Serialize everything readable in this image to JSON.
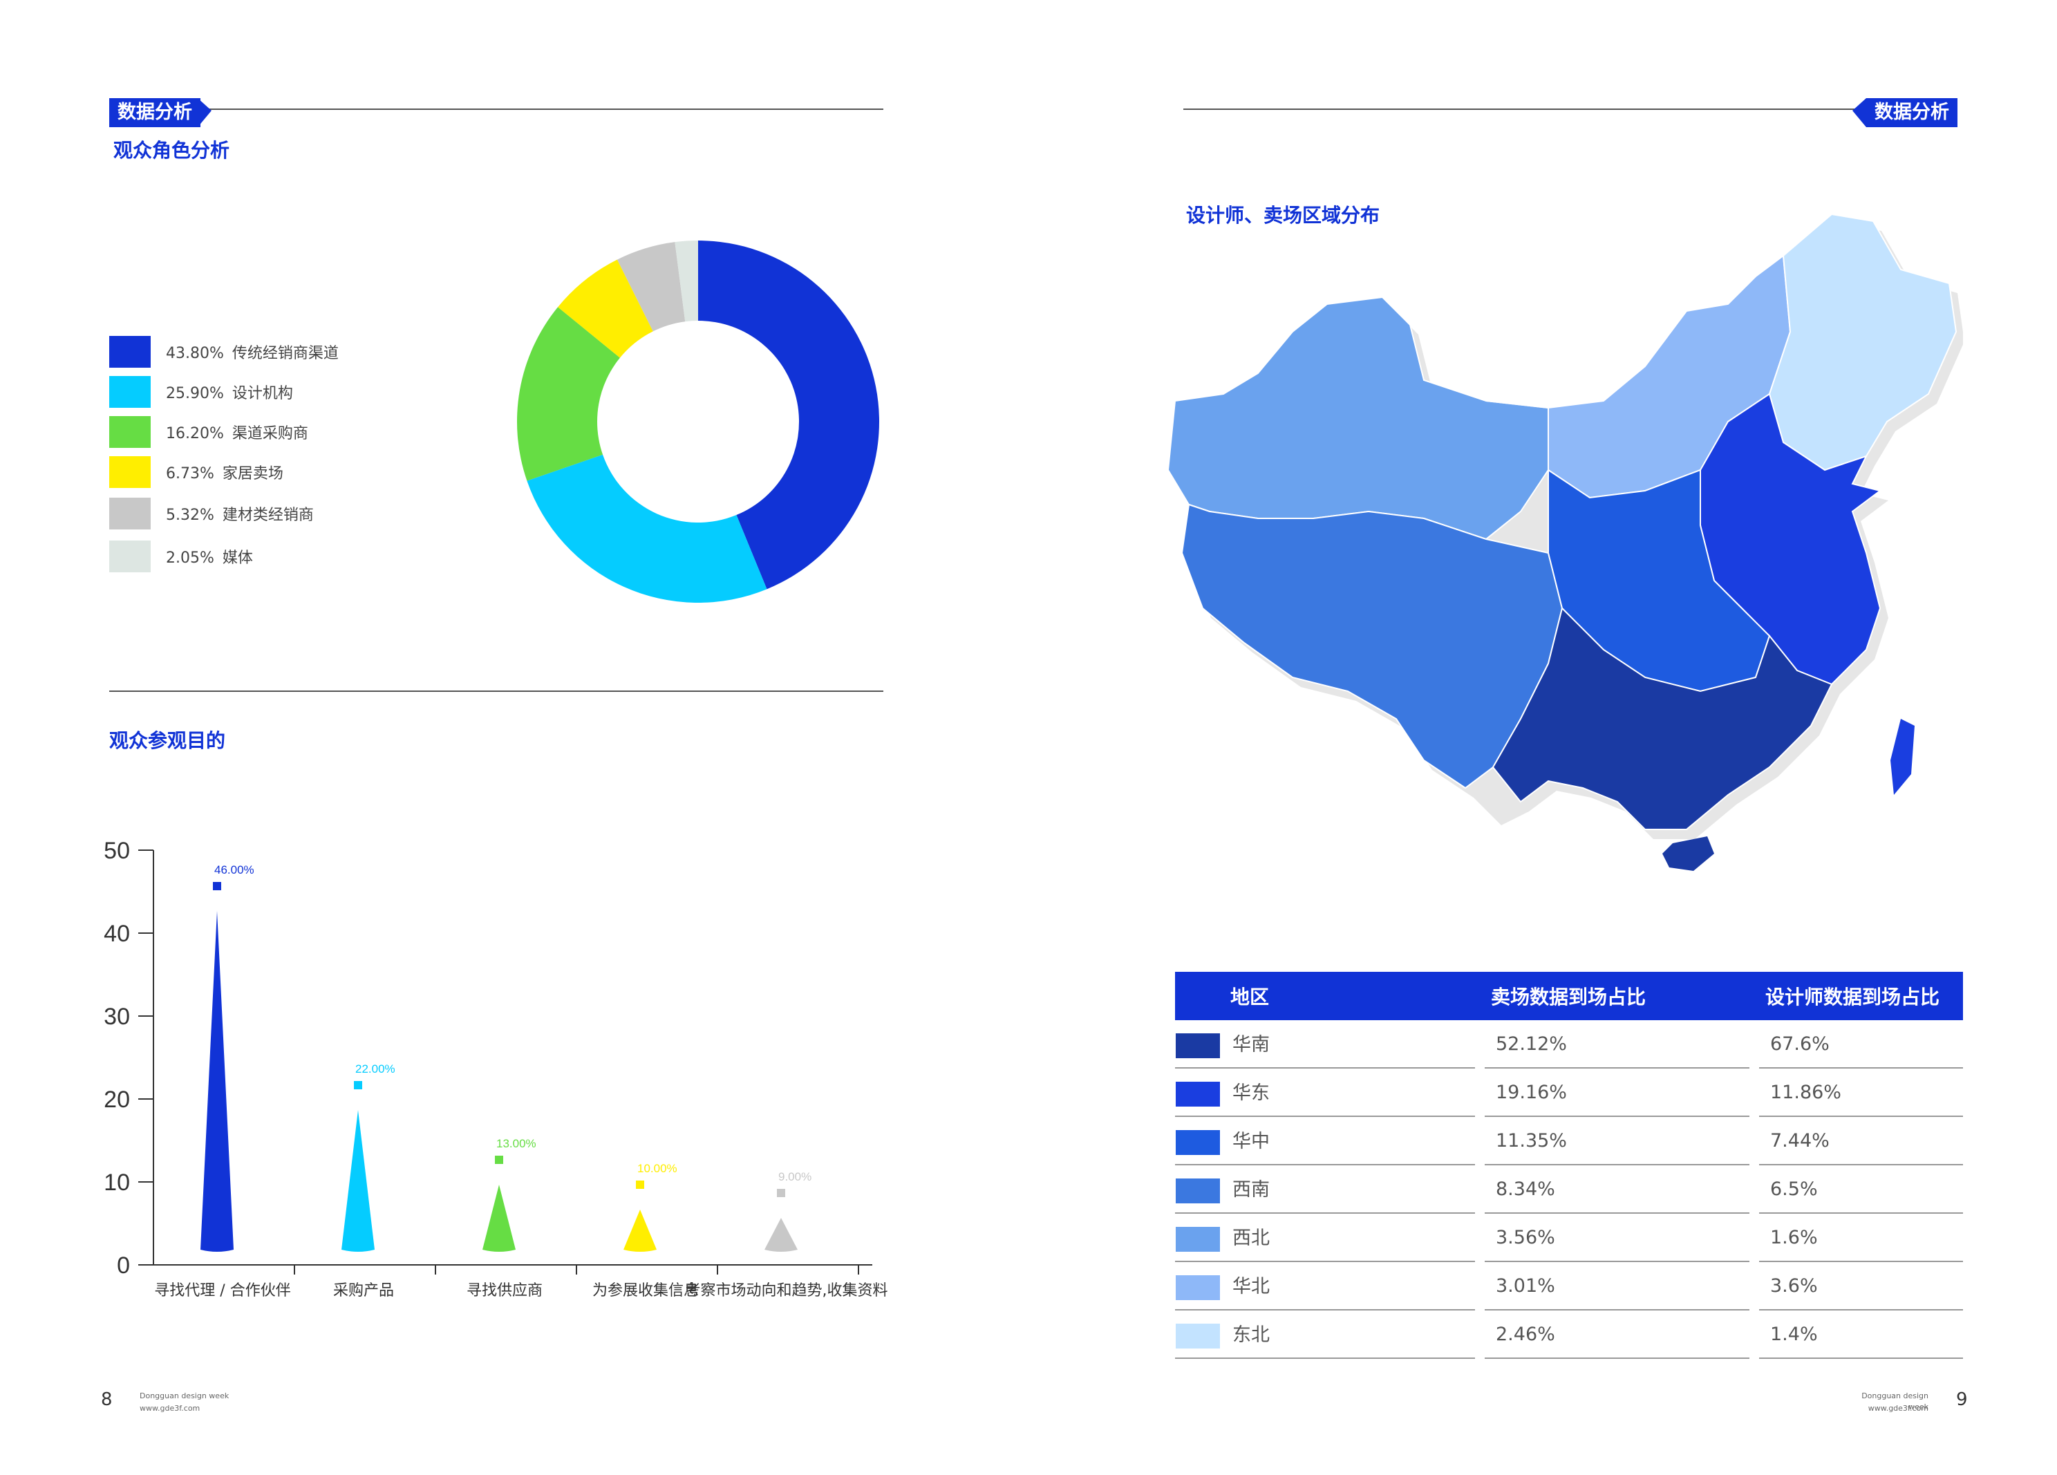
{
  "left_page": {
    "tag": "数据分析",
    "donut_title": "观众角色分析",
    "legend": [
      {
        "pct": "43.80%",
        "label": "传统经销商渠道",
        "color": "#1133d6"
      },
      {
        "pct": "25.90%",
        "label": "设计机构",
        "color": "#05ccff"
      },
      {
        "pct": "16.20%",
        "label": "渠道采购商",
        "color": "#66dd44"
      },
      {
        "pct": "6.73%",
        "label": "家居卖场",
        "color": "#ffee00"
      },
      {
        "pct": "5.32%",
        "label": "建材类经销商",
        "color": "#c8c8c8"
      },
      {
        "pct": "2.05%",
        "label": "媒体",
        "color": "#dde6e2"
      }
    ],
    "bar_title": "观众参观目的",
    "page_number": "8",
    "footer_line1": "Dongguan design week",
    "footer_line2": "www.gde3f.com"
  },
  "right_page": {
    "tag": "数据分析",
    "map_title": "设计师、卖场区域分布",
    "table": {
      "headers": [
        "地区",
        "卖场数据到场占比",
        "设计师数据到场占比"
      ],
      "rows": [
        {
          "region": "华南",
          "market": "52.12%",
          "designer": "67.6%",
          "color": "#1a3aa3"
        },
        {
          "region": "华东",
          "market": "19.16%",
          "designer": "11.86%",
          "color": "#1a3ee0"
        },
        {
          "region": "华中",
          "market": "11.35%",
          "designer": "7.44%",
          "color": "#1e5be0"
        },
        {
          "region": "西南",
          "market": "8.34%",
          "designer": "6.5%",
          "color": "#3b78e0"
        },
        {
          "region": "西北",
          "market": "3.56%",
          "designer": "1.6%",
          "color": "#6aa2ee"
        },
        {
          "region": "华北",
          "market": "3.01%",
          "designer": "3.6%",
          "color": "#8eb8f8"
        },
        {
          "region": "东北",
          "market": "2.46%",
          "designer": "1.4%",
          "color": "#c3e3ff"
        }
      ]
    },
    "page_number": "9",
    "footer_line1": "Dongguan design week",
    "footer_line2": "www.gde3f.com"
  },
  "chart_data": [
    {
      "type": "pie",
      "title": "观众角色分析",
      "categories": [
        "传统经销商渠道",
        "设计机构",
        "渠道采购商",
        "家居卖场",
        "建材类经销商",
        "媒体"
      ],
      "values": [
        43.8,
        25.9,
        16.2,
        6.73,
        5.32,
        2.05
      ],
      "colors": [
        "#1133d6",
        "#05ccff",
        "#66dd44",
        "#ffee00",
        "#c8c8c8",
        "#dde6e2"
      ],
      "donut": true,
      "legend": "left"
    },
    {
      "type": "bar",
      "title": "观众参观目的",
      "categories": [
        "寻找代理 / 合作伙伴",
        "采购产品",
        "寻找供应商",
        "为参展收集信息",
        "考察市场动向和趋势,收集资料"
      ],
      "values": [
        46.0,
        22.0,
        13.0,
        10.0,
        9.0
      ],
      "value_labels": [
        "46.00%",
        "22.00%",
        "13.00%",
        "10.00%",
        "9.00%"
      ],
      "colors": [
        "#1133d6",
        "#05ccff",
        "#66dd44",
        "#ffee00",
        "#c8c8c8"
      ],
      "yticks": [
        "0",
        "10",
        "20",
        "30",
        "40",
        "50"
      ],
      "ylim": [
        0,
        50
      ],
      "grid": false
    }
  ]
}
